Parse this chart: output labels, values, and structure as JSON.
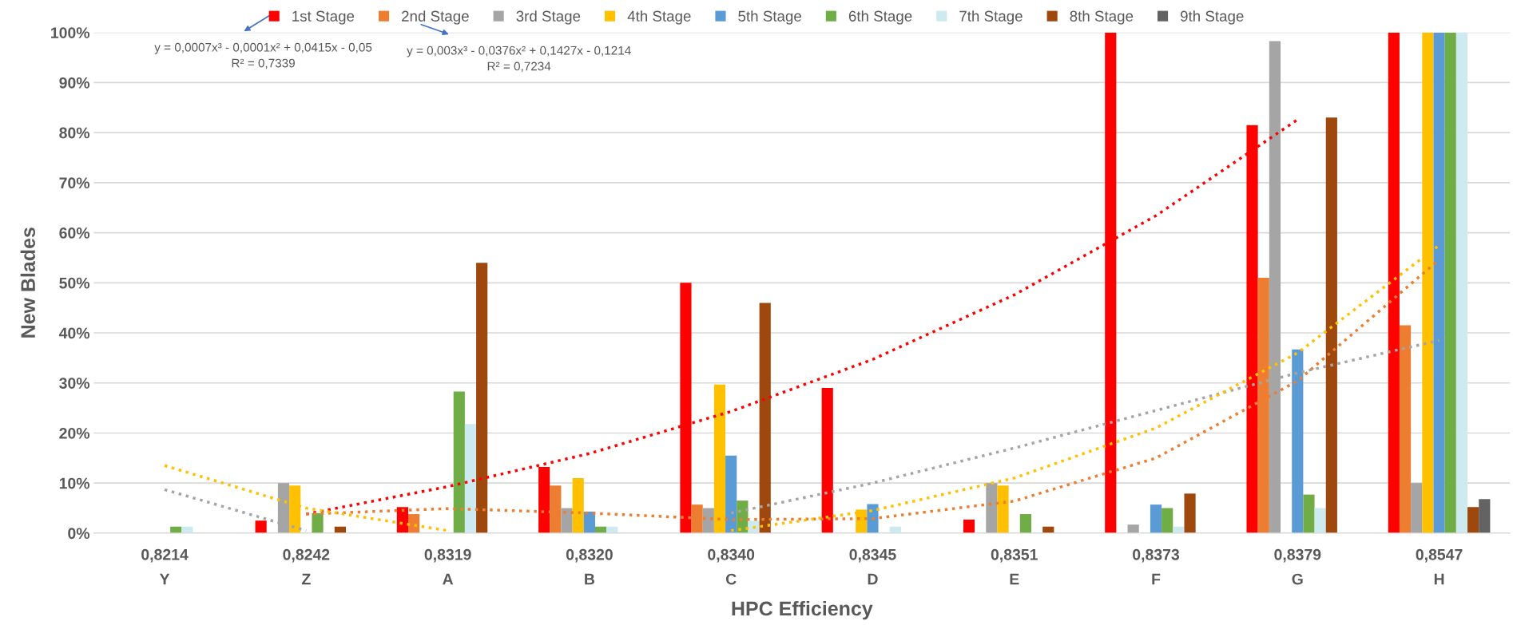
{
  "chart_data": {
    "type": "bar",
    "xlabel": "HPC Efficiency",
    "ylabel": "New Blades",
    "categories": [
      "0,8214\nY",
      "0,8242\nZ",
      "0,8319\nA",
      "0,8320\nB",
      "0,8340\nC",
      "0,8345\nD",
      "0,8351\nE",
      "0,8373\nF",
      "0,8379\nG",
      "0,8547\nH"
    ],
    "series": [
      {
        "name": "1st Stage",
        "color": "#ff0000",
        "values": [
          null,
          2.5,
          5.2,
          13.2,
          50,
          29,
          2.7,
          100,
          81.5,
          100
        ]
      },
      {
        "name": "2nd Stage",
        "color": "#ed7d31",
        "values": [
          null,
          null,
          3.8,
          9.5,
          5.7,
          null,
          null,
          null,
          51,
          41.5
        ]
      },
      {
        "name": "3rd Stage",
        "color": "#a5a5a5",
        "values": [
          null,
          10,
          null,
          5,
          5,
          null,
          10,
          1.7,
          98.3,
          10
        ]
      },
      {
        "name": "4th Stage",
        "color": "#ffc000",
        "values": [
          null,
          9.5,
          null,
          11,
          29.7,
          4.7,
          9.5,
          null,
          null,
          100
        ]
      },
      {
        "name": "5th Stage",
        "color": "#5b9bd5",
        "values": [
          null,
          null,
          null,
          4.3,
          15.5,
          5.8,
          null,
          5.7,
          36.7,
          100
        ]
      },
      {
        "name": "6th Stage",
        "color": "#70ad47",
        "values": [
          1.3,
          4,
          28.3,
          1.3,
          6.5,
          null,
          3.8,
          5,
          7.7,
          100
        ]
      },
      {
        "name": "7th Stage",
        "color": "#cdeaf0",
        "values": [
          1.3,
          null,
          21.8,
          1.3,
          2.5,
          1.3,
          null,
          1.3,
          5,
          100
        ]
      },
      {
        "name": "8th Stage",
        "color": "#9e480e",
        "values": [
          null,
          1.3,
          54,
          null,
          46,
          null,
          1.3,
          7.9,
          83,
          5.2
        ]
      },
      {
        "name": "9th Stage",
        "color": "#636363",
        "values": [
          null,
          null,
          null,
          null,
          null,
          null,
          null,
          null,
          null,
          6.8
        ]
      },
      {
        "type": "line",
        "line_style": "dotted",
        "color": "#ff0000",
        "values": [
          null,
          3.8,
          9.3,
          15.9,
          24.3,
          34.7,
          47.6,
          63.4,
          82.6,
          null
        ]
      },
      {
        "type": "line",
        "line_style": "dotted",
        "color": "#ed7d31",
        "values": [
          null,
          3.8,
          4.9,
          4.0,
          2.7,
          2.9,
          6.4,
          15.0,
          30.4,
          54.6
        ]
      },
      {
        "type": "line",
        "line_style": "dotted",
        "color": "#a5a5a5",
        "values": [
          8.7,
          0.5,
          null,
          null,
          4,
          10,
          17,
          24.5,
          32,
          38.5
        ]
      },
      {
        "type": "line",
        "line_style": "dotted",
        "color": "#ffc000",
        "values": [
          13.5,
          5,
          0.5,
          null,
          0.5,
          4.5,
          11,
          21,
          36,
          57.5
        ]
      }
    ],
    "ylim": [
      0,
      100
    ],
    "yticks": [
      {
        "value": 0,
        "label": "0%"
      },
      {
        "value": 10,
        "label": "10%"
      },
      {
        "value": 20,
        "label": "20%"
      },
      {
        "value": 30,
        "label": "30%"
      },
      {
        "value": 40,
        "label": "40%"
      },
      {
        "value": 50,
        "label": "50%"
      },
      {
        "value": 60,
        "label": "60%"
      },
      {
        "value": 70,
        "label": "70%"
      },
      {
        "value": 80,
        "label": "80%"
      },
      {
        "value": 90,
        "label": "90%"
      },
      {
        "value": 100,
        "label": "100%"
      }
    ],
    "grid": "y",
    "legend": "top",
    "annotations": [
      "y = 0,0007x³ - 0,0001x² + 0,0415x - 0,05\nR² = 0,7339",
      "y = 0,003x³ - 0,0376x² + 0,1427x - 0,1214\nR² = 0,7234"
    ]
  }
}
